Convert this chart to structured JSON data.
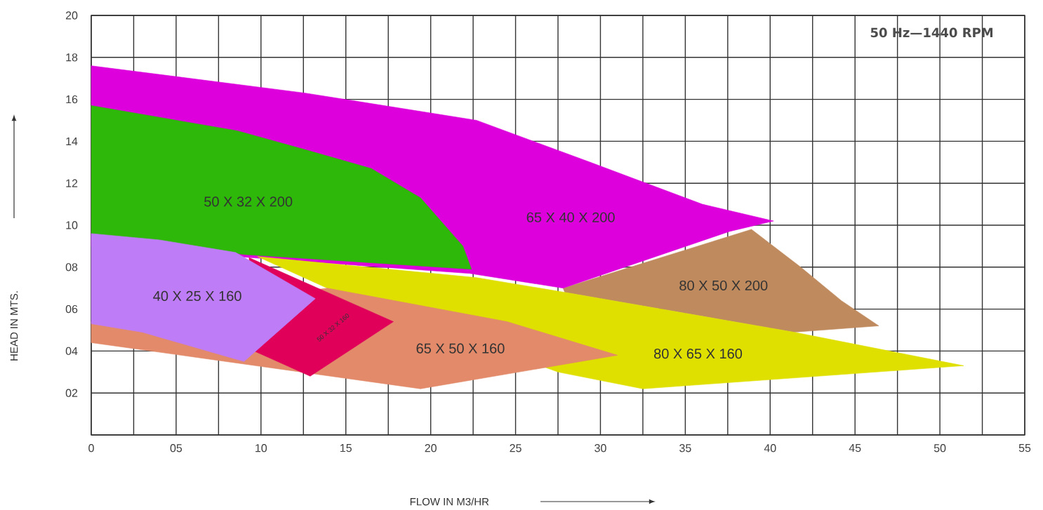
{
  "chart_data": {
    "type": "area",
    "xlabel": "FLOW IN M3/HR",
    "ylabel": "HEAD IN MTS.",
    "xlim": [
      0,
      55
    ],
    "ylim": [
      0,
      20
    ],
    "xticks": [
      0,
      {
        "value": 5,
        "label": "05"
      },
      10,
      15,
      20,
      25,
      30,
      35,
      40,
      45,
      50,
      55
    ],
    "yticks": [
      {
        "value": 0,
        "label": null
      },
      {
        "value": 2,
        "label": "02"
      },
      {
        "value": 4,
        "label": "04"
      },
      {
        "value": 6,
        "label": "06"
      },
      {
        "value": 8,
        "label": "08"
      },
      10,
      12,
      14,
      16,
      18,
      20
    ],
    "grid": true,
    "series": [
      {
        "name": "80 X 50 X 200",
        "color": "#bf8a5e",
        "x": [
          27.8,
          38.9,
          41.8,
          44.2,
          46.4,
          41.4,
          27.9
        ],
        "values": [
          7.0,
          9.8,
          8.0,
          6.4,
          5.2,
          4.9,
          6.8
        ]
      },
      {
        "name": "65 X 40 X 200",
        "color": "#dd00dd",
        "x": [
          0,
          12.6,
          22.7,
          29.4,
          36.0,
          40.2,
          37.6,
          27.8,
          22.3,
          0
        ],
        "values": [
          17.6,
          16.3,
          15.0,
          13.0,
          11.0,
          10.2,
          9.7,
          7.0,
          7.7,
          9.0
        ]
      },
      {
        "name": "50 X 32 X 200",
        "color": "#2db80a",
        "x": [
          0,
          8.6,
          12.6,
          16.5,
          19.4,
          21.9,
          22.4,
          9.0,
          0
        ],
        "values": [
          15.7,
          14.5,
          13.6,
          12.7,
          11.3,
          9.0,
          7.9,
          8.6,
          9.6
        ]
      },
      {
        "name": "80 X 65 X 160",
        "color": "#dfe000",
        "x": [
          9.8,
          22.7,
          27.9,
          41.4,
          51.4,
          32.5,
          27.5,
          13.9
        ],
        "values": [
          8.5,
          7.5,
          6.8,
          4.9,
          3.3,
          2.2,
          3.0,
          7.0
        ]
      },
      {
        "name": "65 X 50 X 160",
        "color": "#e28a6a",
        "x": [
          0,
          13.9,
          24.5,
          31.0,
          19.4,
          0
        ],
        "values": [
          5.4,
          7.0,
          5.4,
          3.8,
          2.2,
          4.4
        ]
      },
      {
        "name": "50 X 32 X 160",
        "color": "#e0005a",
        "x": [
          9.3,
          17.8,
          12.9,
          9.6
        ],
        "values": [
          8.45,
          5.4,
          2.8,
          4.0
        ]
      },
      {
        "name": "40 X 25 X 160",
        "color": "#bf7cf7",
        "x": [
          0,
          4.0,
          8.5,
          13.2,
          9.0,
          3.0,
          0
        ],
        "values": [
          9.6,
          9.3,
          8.7,
          6.5,
          3.5,
          4.9,
          5.3
        ]
      }
    ],
    "annotations": [
      "50 Hz—1440 RPM"
    ]
  }
}
